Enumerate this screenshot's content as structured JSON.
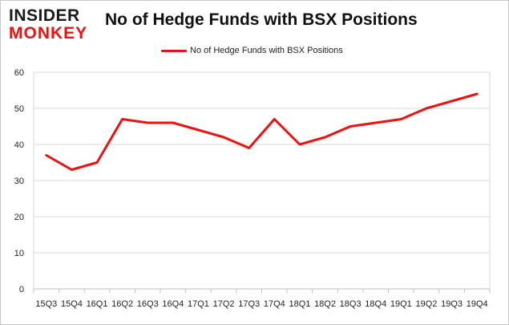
{
  "brand": {
    "logo_line1": "INSIDER",
    "logo_line2": "MONKEY",
    "accent_color": "#ee1111"
  },
  "chart_data": {
    "type": "line",
    "title": "No of Hedge Funds with BSX Positions",
    "xlabel": "",
    "ylabel": "",
    "categories": [
      "15Q3",
      "15Q4",
      "16Q1",
      "16Q2",
      "16Q3",
      "16Q4",
      "17Q1",
      "17Q2",
      "17Q3",
      "17Q4",
      "18Q1",
      "18Q2",
      "18Q3",
      "18Q4",
      "19Q1",
      "19Q2",
      "19Q3",
      "19Q4"
    ],
    "series": [
      {
        "name": "No of Hedge Funds with BSX Positions",
        "color": "#ee1111",
        "values": [
          37,
          33,
          35,
          47,
          46,
          46,
          44,
          42,
          39,
          47,
          40,
          42,
          45,
          46,
          47,
          50,
          52,
          54
        ]
      }
    ],
    "ylim": [
      0,
      60
    ],
    "yticks": [
      0,
      10,
      20,
      30,
      40,
      50,
      60
    ],
    "grid": true,
    "legend_position": "top-center"
  }
}
